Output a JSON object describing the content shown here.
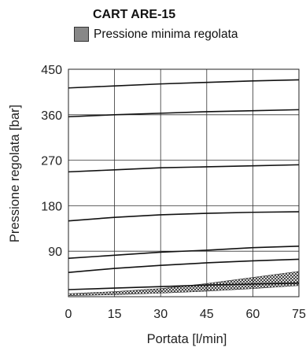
{
  "chart_data": {
    "type": "line",
    "title": "CART ARE-15",
    "legend": {
      "label": "Pressione minima regolata",
      "color": "#888888",
      "placement": "top"
    },
    "xlabel": "Portata [l/min]",
    "ylabel": "Pressione regolata [bar]",
    "xlim": [
      0,
      75
    ],
    "ylim": [
      0,
      450
    ],
    "xticks": [
      "0",
      "15",
      "30",
      "45",
      "60",
      "75"
    ],
    "yticks": [
      "90",
      "180",
      "270",
      "360",
      "450"
    ],
    "grid": true,
    "series": [
      {
        "x": [
          0,
          15,
          30,
          45,
          60,
          75
        ],
        "y": [
          413,
          417,
          421,
          424,
          427,
          429
        ]
      },
      {
        "x": [
          0,
          15,
          30,
          45,
          60,
          75
        ],
        "y": [
          356,
          360,
          363,
          366,
          368,
          370
        ]
      },
      {
        "x": [
          0,
          15,
          30,
          45,
          60,
          75
        ],
        "y": [
          247,
          251,
          255,
          257,
          259,
          261
        ]
      },
      {
        "x": [
          0,
          15,
          30,
          45,
          60,
          75
        ],
        "y": [
          150,
          157,
          162,
          165,
          167,
          168
        ]
      },
      {
        "x": [
          0,
          15,
          30,
          45,
          60,
          75
        ],
        "y": [
          76,
          82,
          88,
          92,
          97,
          100
        ]
      },
      {
        "x": [
          0,
          15,
          30,
          45,
          60,
          75
        ],
        "y": [
          48,
          56,
          62,
          67,
          71,
          74
        ]
      },
      {
        "x": [
          0,
          15,
          30,
          45,
          60,
          75
        ],
        "y": [
          14,
          17,
          20,
          23,
          25,
          27
        ]
      }
    ],
    "shaded_band": {
      "name": "Pressione minima regolata",
      "x": [
        0,
        15,
        30,
        45,
        60,
        75
      ],
      "lower": [
        2,
        4,
        7,
        11,
        16,
        22
      ],
      "upper": [
        6,
        10,
        16,
        26,
        38,
        50
      ]
    }
  }
}
